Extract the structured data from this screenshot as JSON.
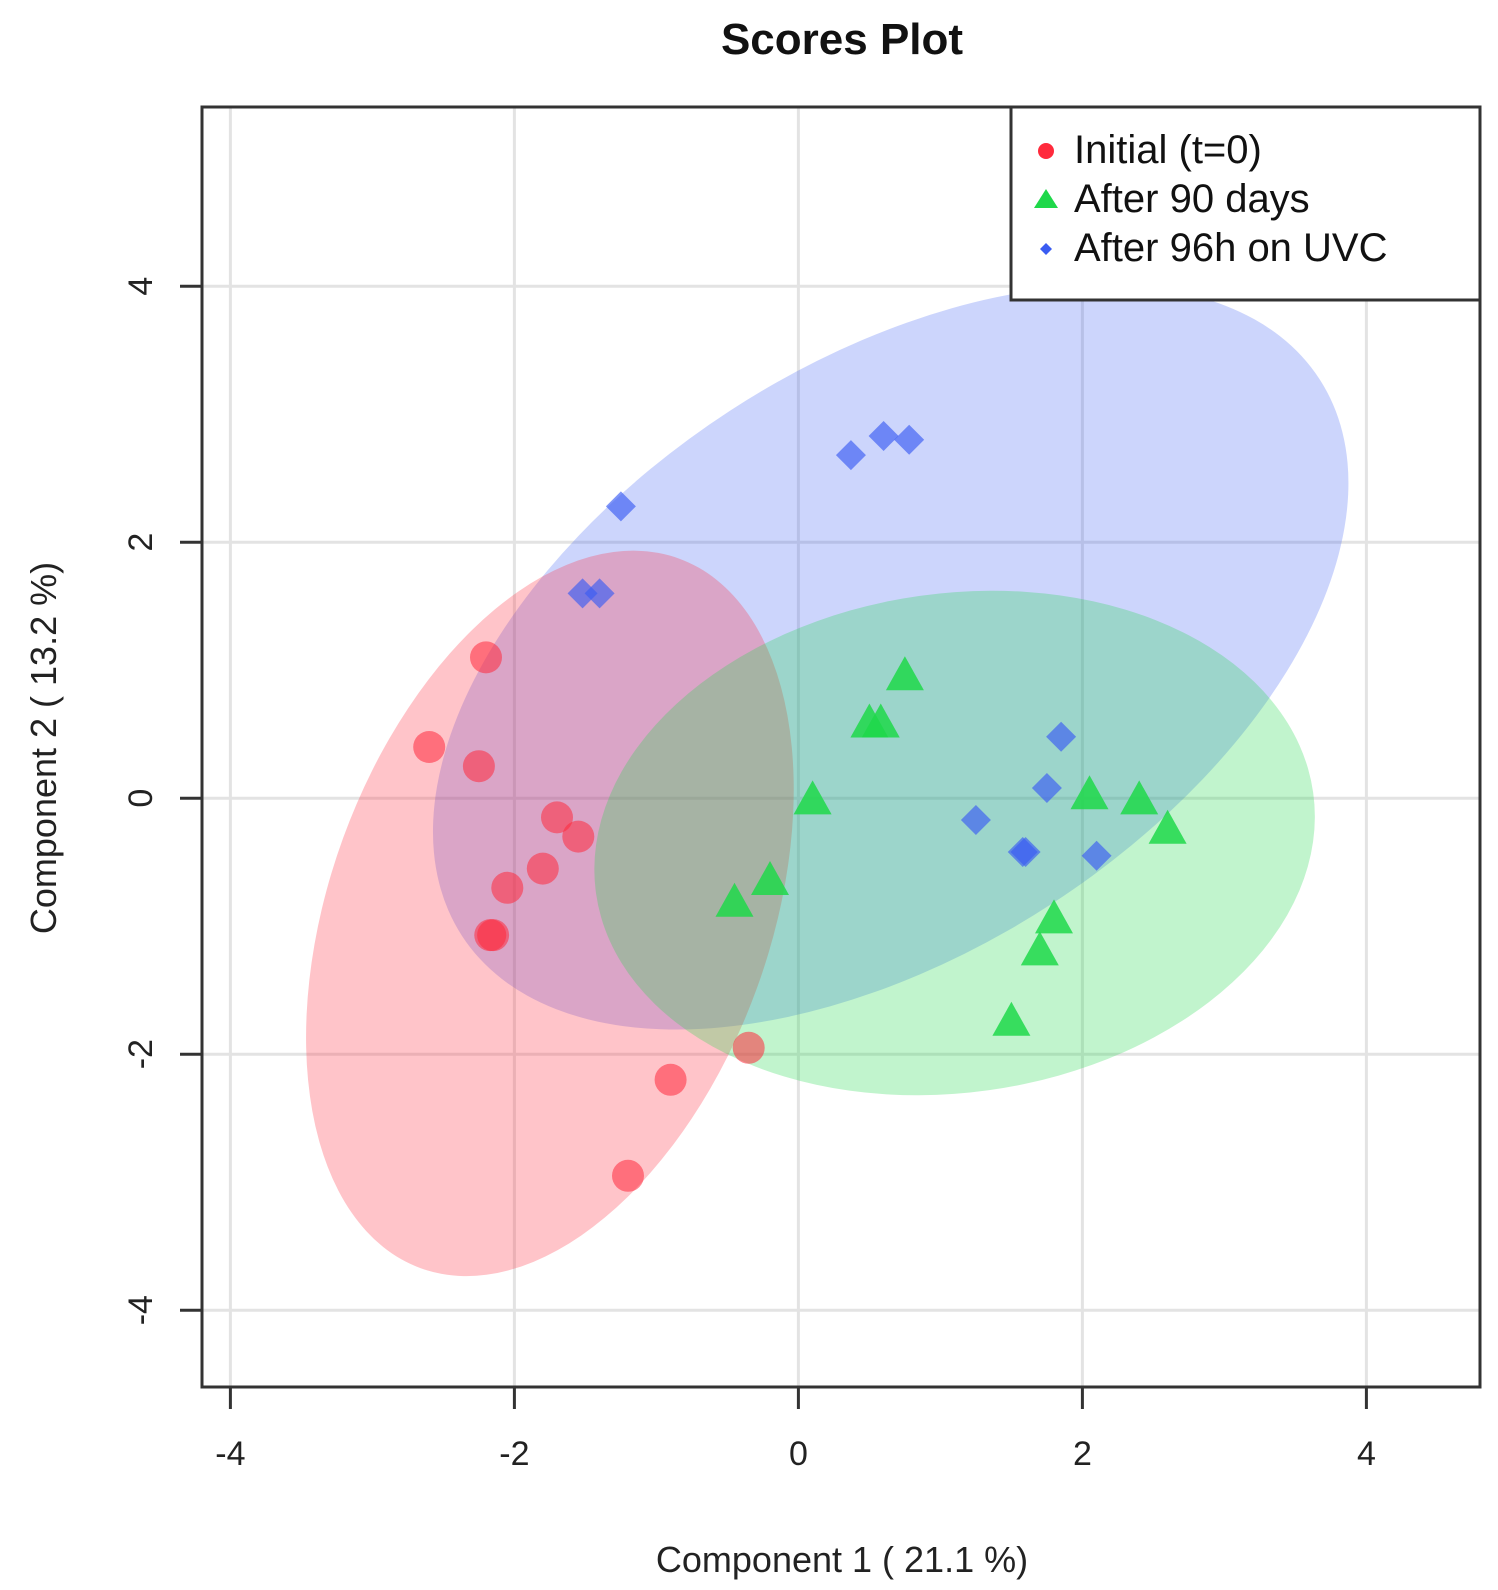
{
  "chart_data": {
    "type": "scatter",
    "title": "Scores Plot",
    "xlabel": "Component 1 ( 21.1 %)",
    "ylabel": "Component 2 ( 13.2 %)",
    "xlim": [
      -4.2,
      4.8
    ],
    "ylim": [
      -4.6,
      5.4
    ],
    "xticks": [
      -4,
      -2,
      0,
      2,
      4
    ],
    "yticks": [
      -4,
      -2,
      0,
      2,
      4
    ],
    "xtick_labels": [
      "-4",
      "-2",
      "0",
      "2",
      "4"
    ],
    "ytick_labels": [
      "-4",
      "-2",
      "0",
      "2",
      "4"
    ],
    "grid": true,
    "legend_position": "top-right",
    "series": [
      {
        "name": "Initial (t=0)",
        "marker": "circle",
        "color": "#ff2a3c",
        "ellipse": {
          "cx": -1.75,
          "cy": -0.9,
          "rx": 1.55,
          "ry": 2.95,
          "angle_deg": 20
        },
        "points": [
          [
            -2.2,
            1.1
          ],
          [
            -2.6,
            0.4
          ],
          [
            -2.25,
            0.25
          ],
          [
            -1.7,
            -0.15
          ],
          [
            -1.55,
            -0.3
          ],
          [
            -2.05,
            -0.7
          ],
          [
            -1.8,
            -0.55
          ],
          [
            -2.15,
            -1.07
          ],
          [
            -2.17,
            -1.07
          ],
          [
            -0.35,
            -1.95
          ],
          [
            -0.9,
            -2.2
          ],
          [
            -1.2,
            -2.95
          ]
        ]
      },
      {
        "name": "After 90 days",
        "marker": "triangle",
        "color": "#1fd84a",
        "ellipse": {
          "cx": 1.1,
          "cy": -0.35,
          "rx": 2.55,
          "ry": 1.95,
          "angle_deg": -8
        },
        "points": [
          [
            0.75,
            0.95
          ],
          [
            0.5,
            0.58
          ],
          [
            0.58,
            0.58
          ],
          [
            0.1,
            -0.02
          ],
          [
            -0.2,
            -0.65
          ],
          [
            -0.45,
            -0.82
          ],
          [
            2.05,
            0.02
          ],
          [
            2.4,
            -0.02
          ],
          [
            2.6,
            -0.25
          ],
          [
            1.8,
            -0.95
          ],
          [
            1.7,
            -1.2
          ],
          [
            1.5,
            -1.75
          ]
        ]
      },
      {
        "name": "After 96h on UVC",
        "marker": "diamond",
        "color": "#3a5cf2",
        "ellipse": {
          "cx": 0.65,
          "cy": 1.1,
          "rx": 3.6,
          "ry": 2.3,
          "angle_deg": -33
        },
        "points": [
          [
            0.37,
            2.68
          ],
          [
            0.6,
            2.83
          ],
          [
            0.78,
            2.8
          ],
          [
            -1.25,
            2.28
          ],
          [
            -1.52,
            1.6
          ],
          [
            -1.4,
            1.6
          ],
          [
            1.85,
            0.48
          ],
          [
            1.75,
            0.08
          ],
          [
            1.25,
            -0.17
          ],
          [
            1.58,
            -0.42
          ],
          [
            1.6,
            -0.42
          ],
          [
            2.1,
            -0.45
          ]
        ]
      }
    ]
  }
}
